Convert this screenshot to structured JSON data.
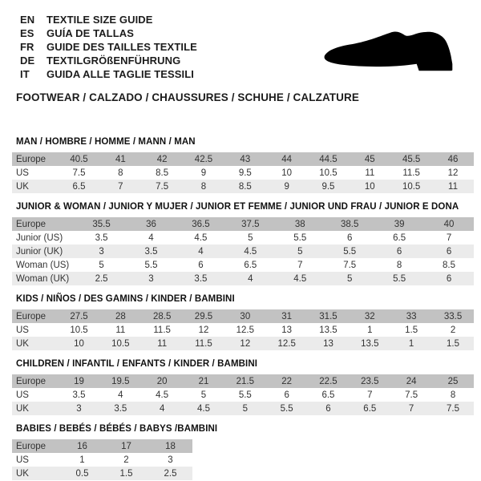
{
  "header": {
    "languages": [
      {
        "code": "EN",
        "label": "TEXTILE SIZE GUIDE"
      },
      {
        "code": "ES",
        "label": "GUÍA DE TALLAS"
      },
      {
        "code": "FR",
        "label": "GUIDE DES TAILLES TEXTILE"
      },
      {
        "code": "DE",
        "label": "TEXTILGRÖßENFÜHRUNG"
      },
      {
        "code": "IT",
        "label": "GUIDA ALLE TAGLIE TESSILI"
      }
    ],
    "category_line": "FOOTWEAR / CALZADO / CHAUSSURES / SCHUHE / CALZATURE",
    "shoe_icon": "dress-shoe-silhouette"
  },
  "colors": {
    "table_header_row_bg": "#c2c2c2",
    "table_alt_row_bg": "#ebebeb",
    "text": "#1c1c1c"
  },
  "tables": [
    {
      "id": "man",
      "title": "MAN / HOMBRE / HOMME / MANN / MAN",
      "rows": [
        {
          "label": "Europe",
          "values": [
            "40.5",
            "41",
            "42",
            "42.5",
            "43",
            "44",
            "44.5",
            "45",
            "45.5",
            "46"
          ]
        },
        {
          "label": "US",
          "values": [
            "7.5",
            "8",
            "8.5",
            "9",
            "9.5",
            "10",
            "10.5",
            "11",
            "11.5",
            "12"
          ]
        },
        {
          "label": "UK",
          "values": [
            "6.5",
            "7",
            "7.5",
            "8",
            "8.5",
            "9",
            "9.5",
            "10",
            "10.5",
            "11"
          ]
        }
      ]
    },
    {
      "id": "junior-woman",
      "title": "JUNIOR & WOMAN / JUNIOR Y MUJER / JUNIOR ET FEMME / JUNIOR UND FRAU / JUNIOR E DONA",
      "rows": [
        {
          "label": "Europe",
          "values": [
            "35.5",
            "36",
            "36.5",
            "37.5",
            "38",
            "38.5",
            "39",
            "40"
          ]
        },
        {
          "label": "Junior (US)",
          "values": [
            "3.5",
            "4",
            "4.5",
            "5",
            "5.5",
            "6",
            "6.5",
            "7"
          ]
        },
        {
          "label": "Junior (UK)",
          "values": [
            "3",
            "3.5",
            "4",
            "4.5",
            "5",
            "5.5",
            "6",
            "6"
          ]
        },
        {
          "label": "Woman (US)",
          "values": [
            "5",
            "5.5",
            "6",
            "6.5",
            "7",
            "7.5",
            "8",
            "8.5"
          ]
        },
        {
          "label": "Woman (UK)",
          "values": [
            "2.5",
            "3",
            "3.5",
            "4",
            "4.5",
            "5",
            "5.5",
            "6"
          ]
        }
      ]
    },
    {
      "id": "kids",
      "title": "KIDS / NIÑOS / DES GAMINS / KINDER / BAMBINI",
      "rows": [
        {
          "label": "Europe",
          "values": [
            "27.5",
            "28",
            "28.5",
            "29.5",
            "30",
            "31",
            "31.5",
            "32",
            "33",
            "33.5"
          ]
        },
        {
          "label": "US",
          "values": [
            "10.5",
            "11",
            "11.5",
            "12",
            "12.5",
            "13",
            "13.5",
            "1",
            "1.5",
            "2"
          ]
        },
        {
          "label": "UK",
          "values": [
            "10",
            "10.5",
            "11",
            "11.5",
            "12",
            "12.5",
            "13",
            "13.5",
            "1",
            "1.5"
          ]
        }
      ]
    },
    {
      "id": "children",
      "title": "CHILDREN / INFANTIL / ENFANTS / KINDER / BAMBINI",
      "rows": [
        {
          "label": "Europe",
          "values": [
            "19",
            "19.5",
            "20",
            "21",
            "21.5",
            "22",
            "22.5",
            "23.5",
            "24",
            "25"
          ]
        },
        {
          "label": "US",
          "values": [
            "3.5",
            "4",
            "4.5",
            "5",
            "5.5",
            "6",
            "6.5",
            "7",
            "7.5",
            "8"
          ]
        },
        {
          "label": "UK",
          "values": [
            "3",
            "3.5",
            "4",
            "4.5",
            "5",
            "5.5",
            "6",
            "6.5",
            "7",
            "7.5"
          ]
        }
      ]
    },
    {
      "id": "babies",
      "title": "BABIES  / BEBÉS / BÉBÉS / BABYS /BAMBINI",
      "rows": [
        {
          "label": "Europe",
          "values": [
            "16",
            "17",
            "18"
          ]
        },
        {
          "label": "US",
          "values": [
            "1",
            "2",
            "3"
          ]
        },
        {
          "label": "UK",
          "values": [
            "0.5",
            "1.5",
            "2.5"
          ]
        }
      ]
    }
  ]
}
